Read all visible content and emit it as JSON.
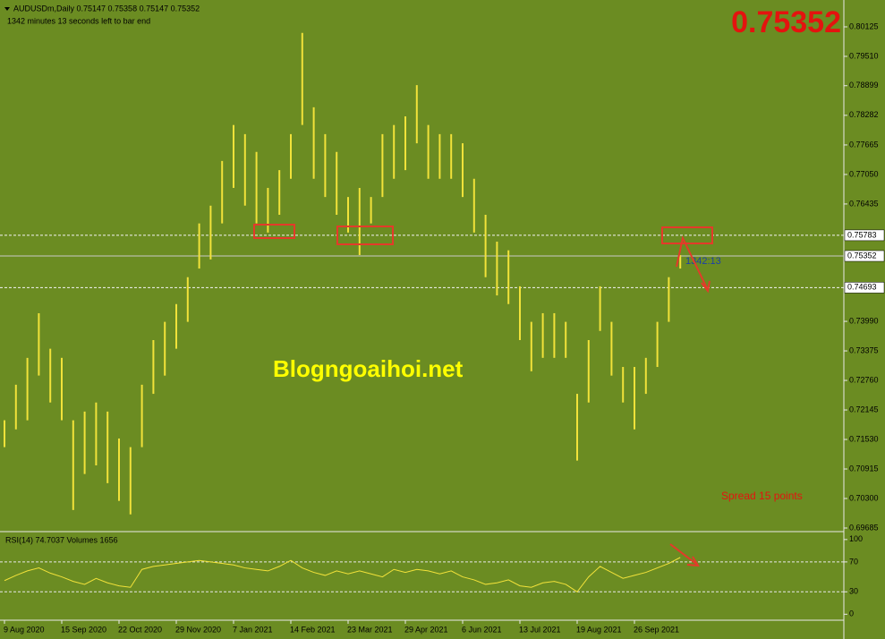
{
  "header": "AUDUSDm,Daily  0.75147 0.75358 0.75147 0.75352",
  "timer": "1342 minutes 13 seconds left to bar end",
  "bid_big": "0.75352",
  "watermark": "Blogngoaihoi.net",
  "spread": "Spread  15 points",
  "bar_timer": "1342:13",
  "chart_data": [
    {
      "type": "range-bar",
      "color": "#f2e23a",
      "categories": [
        "9 Aug 2020",
        null,
        null,
        null,
        null,
        "15 Sep 2020",
        null,
        null,
        null,
        null,
        "22 Oct 2020",
        null,
        null,
        null,
        null,
        "29 Nov 2020",
        null,
        null,
        null,
        null,
        "7 Jan 2021",
        null,
        null,
        null,
        null,
        "14 Feb 2021",
        null,
        null,
        null,
        null,
        "23 Mar 2021",
        null,
        null,
        null,
        null,
        "29 Apr 2021",
        null,
        null,
        null,
        null,
        "6 Jun 2021",
        null,
        null,
        null,
        null,
        "13 Jul 2021",
        null,
        null,
        null,
        null,
        "19 Aug 2021",
        null,
        null,
        null,
        null,
        "26 Sep 2021",
        null,
        null,
        null,
        null
      ],
      "high": [
        0.7193,
        0.7267,
        0.7323,
        0.7416,
        0.7342,
        0.7323,
        0.7193,
        0.7211,
        0.723,
        0.7211,
        0.7155,
        0.7137,
        0.7267,
        0.736,
        0.7398,
        0.7435,
        0.7491,
        0.7603,
        0.764,
        0.7733,
        0.7808,
        0.7789,
        0.7752,
        0.7677,
        0.7714,
        0.7789,
        0.8,
        0.7845,
        0.7789,
        0.7752,
        0.7658,
        0.7677,
        0.7658,
        0.7789,
        0.7808,
        0.7826,
        0.7891,
        0.7808,
        0.7789,
        0.7789,
        0.777,
        0.7696,
        0.7621,
        0.7565,
        0.7547,
        0.7472,
        0.7398,
        0.7416,
        0.7416,
        0.7398,
        0.7248,
        0.736,
        0.7472,
        0.7398,
        0.7304,
        0.7304,
        0.7323,
        0.7398,
        0.7491,
        0.7537
      ],
      "low": [
        0.7137,
        0.7174,
        0.7193,
        0.7286,
        0.723,
        0.7193,
        0.7006,
        0.7081,
        0.7099,
        0.7062,
        0.7025,
        0.6997,
        0.7137,
        0.7248,
        0.7286,
        0.7342,
        0.7398,
        0.7509,
        0.7528,
        0.7603,
        0.7677,
        0.764,
        0.7603,
        0.7584,
        0.7621,
        0.7696,
        0.7808,
        0.7696,
        0.7658,
        0.7621,
        0.7584,
        0.7537,
        0.7603,
        0.7658,
        0.7696,
        0.7714,
        0.777,
        0.7696,
        0.7696,
        0.7696,
        0.7658,
        0.7584,
        0.7491,
        0.7453,
        0.7435,
        0.736,
        0.7295,
        0.7323,
        0.7323,
        0.7323,
        0.7109,
        0.723,
        0.7379,
        0.7286,
        0.723,
        0.7174,
        0.7248,
        0.7304,
        0.7398,
        0.7509
      ],
      "ylim": [
        0.69629,
        0.80684
      ],
      "yticks": [
        0.80125,
        {
          "value": 0.7951,
          "label": "0.79510"
        },
        0.78899,
        0.78282,
        0.77665,
        {
          "value": 0.7705,
          "label": "0.77050"
        },
        0.76435,
        {
          "value": 0.7399,
          "label": "0.73990"
        },
        0.73375,
        {
          "value": 0.7276,
          "label": "0.72760"
        },
        0.72145,
        {
          "value": 0.7153,
          "label": "0.71530"
        },
        0.70915,
        {
          "value": 0.703,
          "label": "0.70300"
        },
        0.69685
      ],
      "price_lines": [
        0.75783,
        0.75352,
        0.74693
      ],
      "price_line_styles": [
        "dashed",
        "solid",
        "dashed"
      ]
    },
    {
      "type": "line",
      "title": "RSI(14) 74.7037  Volumes 1656",
      "color": "#f2e23a",
      "values": [
        45,
        52,
        58,
        62,
        55,
        50,
        44,
        40,
        48,
        42,
        38,
        36,
        60,
        64,
        66,
        68,
        70,
        72,
        70,
        68,
        66,
        62,
        60,
        58,
        64,
        72,
        62,
        56,
        52,
        58,
        54,
        58,
        54,
        50,
        60,
        56,
        60,
        58,
        54,
        58,
        50,
        46,
        40,
        42,
        46,
        38,
        36,
        42,
        44,
        40,
        30,
        50,
        64,
        56,
        48,
        52,
        56,
        62,
        68,
        76
      ],
      "ylim": [
        -8,
        107
      ],
      "yticks": [
        100,
        70,
        30,
        0
      ],
      "levels": [
        70,
        30
      ]
    }
  ]
}
